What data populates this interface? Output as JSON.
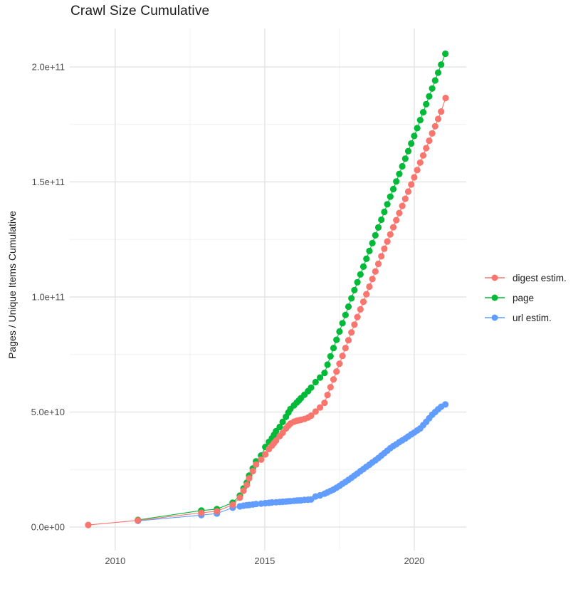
{
  "chart_data": {
    "type": "scatter",
    "title": "Crawl Size Cumulative",
    "xlabel": "",
    "ylabel": "Pages / Unique Items Cumulative",
    "legend_position": "right",
    "grid": true,
    "background_color": "#ffffff",
    "grid_major_color": "#e3e3e3",
    "grid_minor_color": "#f0f0f0",
    "axis_text_color": "#4d4d4d",
    "xlim": [
      2008.48,
      2021.74
    ],
    "ylim": [
      -10200000000.0,
      216700000000.0
    ],
    "x_ticks": [
      {
        "value": 2010,
        "label": "2010"
      },
      {
        "value": 2015,
        "label": "2015"
      },
      {
        "value": 2020,
        "label": "2020"
      }
    ],
    "x_minor_ticks": [
      2012.5,
      2017.5
    ],
    "y_ticks": [
      {
        "value": 0,
        "label": "0.0e+00"
      },
      {
        "value": 50000000000.0,
        "label": "5.0e+10"
      },
      {
        "value": 100000000000.0,
        "label": "1.0e+11"
      },
      {
        "value": 150000000000.0,
        "label": "1.5e+11"
      },
      {
        "value": 200000000000.0,
        "label": "2.0e+11"
      }
    ],
    "y_minor_ticks": [
      25000000000.0,
      75000000000.0,
      125000000000.0,
      175000000000.0
    ],
    "series": [
      {
        "name": "digest estim.",
        "color": "#F8766D",
        "z": 3,
        "points": [
          [
            2009.1,
            900000000.0
          ],
          [
            2010.76,
            2900000000.0
          ],
          [
            2012.88,
            6200000000.0
          ],
          [
            2013.4,
            6900000000.0
          ],
          [
            2013.93,
            9700000000.0
          ],
          [
            2014.17,
            12800000000.0
          ],
          [
            2014.29,
            15800000000.0
          ],
          [
            2014.4,
            18300000000.0
          ],
          [
            2014.48,
            21200000000.0
          ],
          [
            2014.6,
            24300000000.0
          ],
          [
            2014.71,
            27200000000.0
          ],
          [
            2014.88,
            29300000000.0
          ],
          [
            2015.02,
            31600000000.0
          ],
          [
            2015.14,
            33900000000.0
          ],
          [
            2015.24,
            35400000000.0
          ],
          [
            2015.31,
            36500000000.0
          ],
          [
            2015.38,
            37600000000.0
          ],
          [
            2015.5,
            39500000000.0
          ],
          [
            2015.6,
            41000000000.0
          ],
          [
            2015.71,
            42900000000.0
          ],
          [
            2015.79,
            44100000000.0
          ],
          [
            2015.86,
            45000000000.0
          ],
          [
            2015.98,
            45800000000.0
          ],
          [
            2016.07,
            46200000000.0
          ],
          [
            2016.14,
            46400000000.0
          ],
          [
            2016.21,
            46600000000.0
          ],
          [
            2016.33,
            47000000000.0
          ],
          [
            2016.45,
            47600000000.0
          ],
          [
            2016.55,
            48400000000.0
          ],
          [
            2016.7,
            50200000000.0
          ],
          [
            2016.85,
            52000000000.0
          ],
          [
            2017.0,
            54000000000.0
          ],
          [
            2017.1,
            57400000000.0
          ],
          [
            2017.2,
            60800000000.0
          ],
          [
            2017.3,
            64200000000.0
          ],
          [
            2017.4,
            67600000000.0
          ],
          [
            2017.5,
            71000000000.0
          ],
          [
            2017.6,
            74400000000.0
          ],
          [
            2017.7,
            77800000000.0
          ],
          [
            2017.8,
            81200000000.0
          ],
          [
            2017.9,
            84600000000.0
          ],
          [
            2018.0,
            88000000000.0
          ],
          [
            2018.1,
            91300000000.0
          ],
          [
            2018.2,
            94600000000.0
          ],
          [
            2018.3,
            97900000000.0
          ],
          [
            2018.4,
            101200000000.0
          ],
          [
            2018.5,
            104500000000.0
          ],
          [
            2018.6,
            107800000000.0
          ],
          [
            2018.7,
            111100000000.0
          ],
          [
            2018.8,
            114400000000.0
          ],
          [
            2018.9,
            117700000000.0
          ],
          [
            2019.0,
            121000000000.0
          ],
          [
            2019.1,
            124100000000.0
          ],
          [
            2019.2,
            127200000000.0
          ],
          [
            2019.3,
            130300000000.0
          ],
          [
            2019.4,
            133400000000.0
          ],
          [
            2019.5,
            136500000000.0
          ],
          [
            2019.6,
            139600000000.0
          ],
          [
            2019.7,
            142700000000.0
          ],
          [
            2019.8,
            145800000000.0
          ],
          [
            2019.9,
            148900000000.0
          ],
          [
            2020.0,
            152000000000.0
          ],
          [
            2020.1,
            155200000000.0
          ],
          [
            2020.2,
            158400000000.0
          ],
          [
            2020.3,
            161500000000.0
          ],
          [
            2020.4,
            164700000000.0
          ],
          [
            2020.5,
            167900000000.0
          ],
          [
            2020.6,
            171100000000.0
          ],
          [
            2020.7,
            174200000000.0
          ],
          [
            2020.8,
            177400000000.0
          ],
          [
            2020.9,
            180600000000.0
          ],
          [
            2021.05,
            186500000000.0
          ]
        ]
      },
      {
        "name": "page",
        "color": "#00BA38",
        "z": 2,
        "points": [
          [
            2010.76,
            3100000000.0
          ],
          [
            2012.88,
            7200000000.0
          ],
          [
            2013.4,
            7800000000.0
          ],
          [
            2013.93,
            10600000000.0
          ],
          [
            2014.17,
            13700000000.0
          ],
          [
            2014.29,
            16800000000.0
          ],
          [
            2014.4,
            19300000000.0
          ],
          [
            2014.48,
            22400000000.0
          ],
          [
            2014.6,
            25500000000.0
          ],
          [
            2014.71,
            28600000000.0
          ],
          [
            2014.88,
            31100000000.0
          ],
          [
            2015.02,
            34800000000.0
          ],
          [
            2015.14,
            37000000000.0
          ],
          [
            2015.24,
            38600000000.0
          ],
          [
            2015.31,
            40100000000.0
          ],
          [
            2015.38,
            41700000000.0
          ],
          [
            2015.5,
            43500000000.0
          ],
          [
            2015.6,
            45700000000.0
          ],
          [
            2015.71,
            47900000000.0
          ],
          [
            2015.79,
            49800000000.0
          ],
          [
            2015.86,
            51300000000.0
          ],
          [
            2015.98,
            52900000000.0
          ],
          [
            2016.07,
            54100000000.0
          ],
          [
            2016.14,
            55000000000.0
          ],
          [
            2016.21,
            56000000000.0
          ],
          [
            2016.33,
            57500000000.0
          ],
          [
            2016.45,
            59100000000.0
          ],
          [
            2016.55,
            60600000000.0
          ],
          [
            2016.7,
            63000000000.0
          ],
          [
            2016.85,
            65000000000.0
          ],
          [
            2017.0,
            67000000000.0
          ],
          [
            2017.1,
            70600000000.0
          ],
          [
            2017.2,
            74200000000.0
          ],
          [
            2017.3,
            77800000000.0
          ],
          [
            2017.4,
            81400000000.0
          ],
          [
            2017.5,
            85000000000.0
          ],
          [
            2017.6,
            88600000000.0
          ],
          [
            2017.7,
            92200000000.0
          ],
          [
            2017.8,
            95800000000.0
          ],
          [
            2017.9,
            99400000000.0
          ],
          [
            2018.0,
            103000000000.0
          ],
          [
            2018.1,
            106400000000.0
          ],
          [
            2018.2,
            109800000000.0
          ],
          [
            2018.3,
            113200000000.0
          ],
          [
            2018.4,
            116600000000.0
          ],
          [
            2018.5,
            120000000000.0
          ],
          [
            2018.6,
            123400000000.0
          ],
          [
            2018.7,
            126800000000.0
          ],
          [
            2018.8,
            130200000000.0
          ],
          [
            2018.9,
            133600000000.0
          ],
          [
            2019.0,
            137000000000.0
          ],
          [
            2019.1,
            140300000000.0
          ],
          [
            2019.2,
            143600000000.0
          ],
          [
            2019.3,
            146900000000.0
          ],
          [
            2019.4,
            150200000000.0
          ],
          [
            2019.5,
            153500000000.0
          ],
          [
            2019.6,
            156800000000.0
          ],
          [
            2019.7,
            160100000000.0
          ],
          [
            2019.8,
            163400000000.0
          ],
          [
            2019.9,
            166700000000.0
          ],
          [
            2020.0,
            170000000000.0
          ],
          [
            2020.1,
            173400000000.0
          ],
          [
            2020.2,
            176900000000.0
          ],
          [
            2020.3,
            180300000000.0
          ],
          [
            2020.4,
            183800000000.0
          ],
          [
            2020.5,
            187200000000.0
          ],
          [
            2020.6,
            190600000000.0
          ],
          [
            2020.7,
            194100000000.0
          ],
          [
            2020.8,
            197500000000.0
          ],
          [
            2020.9,
            201000000000.0
          ],
          [
            2021.04,
            205700000000.0
          ]
        ]
      },
      {
        "name": "url estim.",
        "color": "#619CFF",
        "z": 1,
        "points": [
          [
            2010.76,
            2700000000.0
          ],
          [
            2012.88,
            5200000000.0
          ],
          [
            2013.4,
            5900000000.0
          ],
          [
            2013.93,
            8400000000.0
          ],
          [
            2014.17,
            9000000000.0
          ],
          [
            2014.29,
            9300000000.0
          ],
          [
            2014.4,
            9500000000.0
          ],
          [
            2014.48,
            9600000000.0
          ],
          [
            2014.6,
            9800000000.0
          ],
          [
            2014.71,
            10000000000.0
          ],
          [
            2014.88,
            10200000000.0
          ],
          [
            2015.02,
            10400000000.0
          ],
          [
            2015.14,
            10550000000.0
          ],
          [
            2015.24,
            10700000000.0
          ],
          [
            2015.38,
            10800000000.0
          ],
          [
            2015.5,
            10900000000.0
          ],
          [
            2015.6,
            11000000000.0
          ],
          [
            2015.71,
            11100000000.0
          ],
          [
            2015.79,
            11200000000.0
          ],
          [
            2015.86,
            11250000000.0
          ],
          [
            2015.98,
            11400000000.0
          ],
          [
            2016.07,
            11500000000.0
          ],
          [
            2016.14,
            11550000000.0
          ],
          [
            2016.21,
            11600000000.0
          ],
          [
            2016.33,
            11800000000.0
          ],
          [
            2016.45,
            11900000000.0
          ],
          [
            2016.55,
            12000000000.0
          ],
          [
            2016.7,
            13300000000.0
          ],
          [
            2016.85,
            13800000000.0
          ],
          [
            2017.0,
            14500000000.0
          ],
          [
            2017.1,
            15100000000.0
          ],
          [
            2017.2,
            15700000000.0
          ],
          [
            2017.3,
            16300000000.0
          ],
          [
            2017.4,
            17100000000.0
          ],
          [
            2017.5,
            17900000000.0
          ],
          [
            2017.6,
            18800000000.0
          ],
          [
            2017.7,
            19600000000.0
          ],
          [
            2017.8,
            20500000000.0
          ],
          [
            2017.9,
            21400000000.0
          ],
          [
            2018.0,
            22400000000.0
          ],
          [
            2018.1,
            23300000000.0
          ],
          [
            2018.2,
            24300000000.0
          ],
          [
            2018.3,
            25200000000.0
          ],
          [
            2018.4,
            26200000000.0
          ],
          [
            2018.5,
            27100000000.0
          ],
          [
            2018.6,
            28100000000.0
          ],
          [
            2018.7,
            29000000000.0
          ],
          [
            2018.8,
            30000000000.0
          ],
          [
            2018.9,
            31100000000.0
          ],
          [
            2019.0,
            32100000000.0
          ],
          [
            2019.1,
            33200000000.0
          ],
          [
            2019.2,
            34300000000.0
          ],
          [
            2019.3,
            35200000000.0
          ],
          [
            2019.4,
            36000000000.0
          ],
          [
            2019.5,
            36900000000.0
          ],
          [
            2019.6,
            37700000000.0
          ],
          [
            2019.7,
            38500000000.0
          ],
          [
            2019.8,
            39400000000.0
          ],
          [
            2019.9,
            40300000000.0
          ],
          [
            2020.0,
            41100000000.0
          ],
          [
            2020.1,
            42000000000.0
          ],
          [
            2020.2,
            42900000000.0
          ],
          [
            2020.3,
            44300000000.0
          ],
          [
            2020.4,
            45700000000.0
          ],
          [
            2020.5,
            47300000000.0
          ],
          [
            2020.6,
            48800000000.0
          ],
          [
            2020.7,
            50000000000.0
          ],
          [
            2020.8,
            51200000000.0
          ],
          [
            2020.9,
            52300000000.0
          ],
          [
            2021.04,
            53300000000.0
          ]
        ]
      }
    ]
  }
}
